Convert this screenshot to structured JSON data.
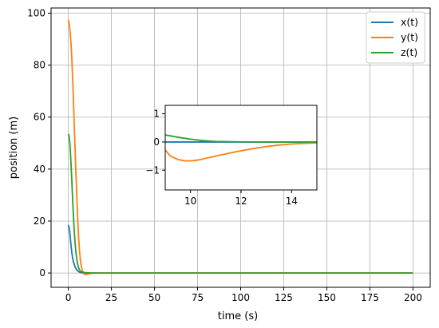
{
  "chart_data": [
    {
      "type": "line",
      "role": "main",
      "xlabel": "time (s)",
      "ylabel": "position (m)",
      "xlim": [
        -10,
        210
      ],
      "ylim": [
        -5.5,
        102
      ],
      "xticks": [
        0,
        25,
        50,
        75,
        100,
        125,
        150,
        175,
        200
      ],
      "yticks": [
        0,
        20,
        40,
        60,
        80,
        100
      ],
      "grid": true,
      "legend_position": "top-right",
      "series": [
        {
          "name": "x(t)",
          "color": "#1f77b4",
          "x": [
            0,
            0.5,
            1,
            1.5,
            2,
            2.5,
            3,
            4,
            5,
            6,
            7,
            8,
            9,
            10,
            12,
            15,
            20,
            50,
            100,
            150,
            200
          ],
          "y": [
            18.5,
            17.5,
            14.5,
            11,
            8,
            5.8,
            4.2,
            2.2,
            1.1,
            0.5,
            0.2,
            0.05,
            0,
            0,
            0,
            0,
            0,
            0,
            0,
            0,
            0
          ]
        },
        {
          "name": "y(t)",
          "color": "#ff7f0e",
          "x": [
            0,
            0.5,
            1,
            1.5,
            2,
            2.5,
            3,
            3.5,
            4,
            4.5,
            5,
            5.5,
            6,
            6.5,
            7,
            7.5,
            8,
            8.5,
            9,
            10,
            11,
            12,
            13,
            15,
            20,
            50,
            100,
            150,
            200
          ],
          "y": [
            97.5,
            96,
            93,
            89,
            83,
            75,
            66,
            56,
            46,
            37,
            28,
            20,
            13.5,
            8.5,
            5,
            2.8,
            1.2,
            0.3,
            -0.3,
            -0.6,
            -0.45,
            -0.3,
            -0.15,
            -0.05,
            0,
            0,
            0,
            0,
            0
          ]
        },
        {
          "name": "z(t)",
          "color": "#2ca02c",
          "x": [
            0,
            0.5,
            1,
            1.5,
            2,
            2.5,
            3,
            3.5,
            4,
            4.5,
            5,
            5.5,
            6,
            6.5,
            7,
            8,
            9,
            10,
            12,
            15,
            20,
            50,
            100,
            150,
            200
          ],
          "y": [
            53.5,
            52.5,
            49,
            43,
            36,
            28.5,
            21.5,
            15.5,
            11,
            7.5,
            5,
            3.2,
            2,
            1.2,
            0.7,
            0.4,
            0.25,
            0.15,
            0.05,
            0,
            0,
            0,
            0,
            0,
            0
          ]
        }
      ]
    },
    {
      "type": "line",
      "role": "inset",
      "xlim": [
        9,
        15
      ],
      "ylim": [
        -1.7,
        1.3
      ],
      "xticks": [
        10,
        12,
        14
      ],
      "yticks": [
        -1,
        0,
        1
      ],
      "ytick_labels": [
        "−1",
        "0",
        "1"
      ],
      "grid": false,
      "series": [
        {
          "color": "#1f77b4",
          "x": [
            9,
            10,
            11,
            12,
            13,
            14,
            15
          ],
          "y": [
            0,
            0,
            0,
            0,
            0,
            0,
            0
          ]
        },
        {
          "color": "#ff7f0e",
          "x": [
            9,
            9.2,
            9.5,
            9.8,
            10,
            10.3,
            10.6,
            11,
            11.5,
            12,
            12.5,
            13,
            13.5,
            14,
            14.5,
            15
          ],
          "y": [
            -0.28,
            -0.5,
            -0.62,
            -0.67,
            -0.67,
            -0.64,
            -0.58,
            -0.5,
            -0.4,
            -0.31,
            -0.23,
            -0.16,
            -0.11,
            -0.07,
            -0.05,
            -0.03
          ]
        },
        {
          "color": "#2ca02c",
          "x": [
            9,
            9.5,
            10,
            10.5,
            11,
            11.5,
            12,
            13,
            14,
            15
          ],
          "y": [
            0.25,
            0.17,
            0.1,
            0.05,
            0.02,
            0.01,
            0.005,
            0,
            0,
            0
          ]
        }
      ]
    }
  ]
}
